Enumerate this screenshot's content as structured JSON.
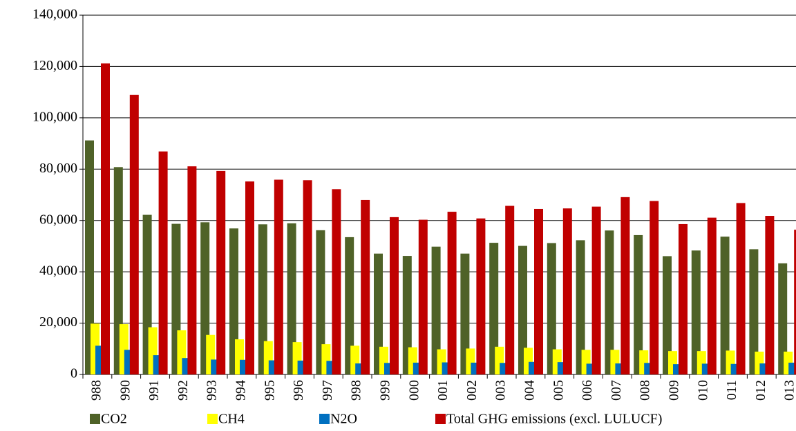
{
  "chart_data": {
    "type": "bar",
    "categories": [
      "988",
      "990",
      "991",
      "992",
      "993",
      "994",
      "995",
      "996",
      "997",
      "998",
      "999",
      "000",
      "001",
      "002",
      "003",
      "004",
      "005",
      "006",
      "007",
      "008",
      "009",
      "010",
      "011",
      "012",
      "013"
    ],
    "series": [
      {
        "name": "CO2",
        "color": "#4f6228",
        "values": [
          91200,
          80800,
          62200,
          58700,
          59300,
          56900,
          58500,
          58900,
          56200,
          53500,
          47100,
          46200,
          49800,
          47100,
          51300,
          50100,
          51200,
          52300,
          56100,
          54300,
          46100,
          48300,
          53700,
          48800,
          43300
        ]
      },
      {
        "name": "CH4",
        "color": "#ffff00",
        "values": [
          19800,
          19600,
          18400,
          17200,
          15400,
          13700,
          13000,
          12600,
          11800,
          11200,
          10800,
          10600,
          9800,
          10100,
          10800,
          10400,
          9800,
          9600,
          9600,
          9400,
          9100,
          9100,
          9300,
          8900,
          8900
        ]
      },
      {
        "name": "N2O",
        "color": "#0070c0",
        "values": [
          11200,
          9600,
          7500,
          6400,
          5800,
          5700,
          5500,
          5400,
          5300,
          4300,
          4500,
          4600,
          4700,
          4600,
          4500,
          4900,
          4800,
          4200,
          4300,
          4500,
          4000,
          4200,
          4100,
          4300,
          4600
        ]
      },
      {
        "name": "Total GHG emissions (excl. LULUCF)",
        "color": "#c00000",
        "values": [
          121200,
          108900,
          86900,
          81100,
          79300,
          75200,
          75900,
          75700,
          72200,
          68000,
          61300,
          60300,
          63400,
          60800,
          65700,
          64500,
          64700,
          65400,
          69100,
          67600,
          58600,
          61100,
          66800,
          61800,
          56400
        ]
      }
    ],
    "ylim": [
      0,
      140000
    ],
    "yticks": [
      0,
      {
        "value": 20000,
        "label": "20,000"
      },
      {
        "value": 40000,
        "label": "40,000"
      },
      {
        "value": 60000,
        "label": "60,000"
      },
      {
        "value": 80000,
        "label": "80,000"
      },
      {
        "value": 100000,
        "label": "100,000"
      },
      {
        "value": 120000,
        "label": "120,000"
      },
      {
        "value": 140000,
        "label": "140,000"
      }
    ],
    "grid": true
  }
}
